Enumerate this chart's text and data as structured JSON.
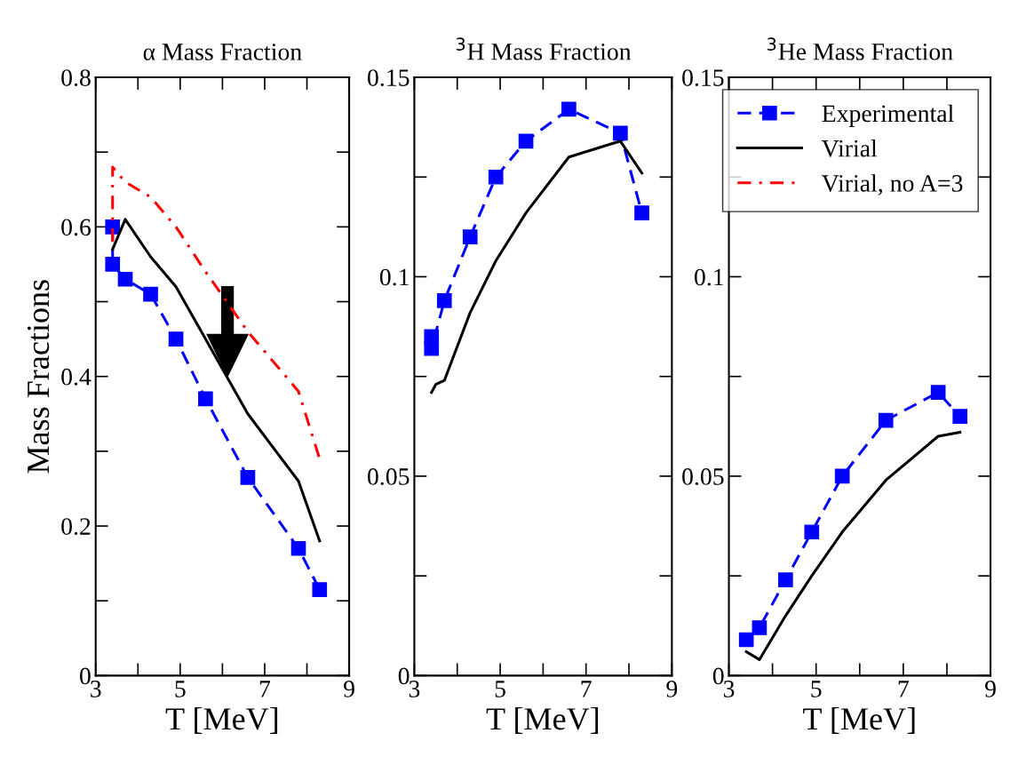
{
  "chart_data": [
    {
      "type": "line",
      "title": "α Mass Fraction",
      "xlabel": "T [MeV]",
      "ylabel": "Mass Fractions",
      "xlim": [
        3,
        9
      ],
      "xticks": [
        3,
        {
          "value": 4,
          "label": null
        },
        5,
        {
          "value": 6,
          "label": null
        },
        7,
        {
          "value": 8,
          "label": null
        },
        9
      ],
      "ylim": [
        0,
        0.8
      ],
      "yticks": [
        0,
        {
          "value": 0.1,
          "label": null
        },
        0.2,
        {
          "value": 0.3,
          "label": null
        },
        0.4,
        {
          "value": 0.5,
          "label": null
        },
        0.6,
        {
          "value": 0.7,
          "label": null
        },
        0.8
      ],
      "grid": false,
      "legend": false,
      "series": [
        {
          "color": "#0000ff",
          "marker": "square",
          "line_style": "dashed",
          "x": [
            3.4,
            3.4,
            3.7,
            4.3,
            4.9,
            5.6,
            6.6,
            7.8,
            8.3
          ],
          "values": [
            0.6,
            0.55,
            0.53,
            0.51,
            0.45,
            0.37,
            0.265,
            0.17,
            0.115
          ]
        },
        {
          "color": "#000000",
          "marker": "none",
          "line_style": "solid",
          "x": [
            3.4,
            3.7,
            4.3,
            4.9,
            5.6,
            6.6,
            7.8,
            8.3
          ],
          "values": [
            0.57,
            0.61,
            0.56,
            0.52,
            0.45,
            0.35,
            0.26,
            0.18
          ]
        },
        {
          "color": "#ff0000",
          "marker": "none",
          "line_style": "dashdot",
          "x": [
            3.4,
            3.4,
            3.7,
            4.3,
            4.9,
            5.6,
            6.6,
            7.8,
            8.3
          ],
          "values": [
            0.58,
            0.68,
            0.66,
            0.64,
            0.6,
            0.54,
            0.46,
            0.38,
            0.29
          ]
        }
      ]
    },
    {
      "type": "line",
      "title": "$^{3}$H Mass Fraction",
      "xlabel": "T [MeV]",
      "xlim": [
        3,
        9
      ],
      "xticks": [
        3,
        {
          "value": 4,
          "label": null
        },
        5,
        {
          "value": 6,
          "label": null
        },
        7,
        {
          "value": 8,
          "label": null
        },
        9
      ],
      "ylim": [
        0,
        0.15
      ],
      "yticks": [
        0,
        {
          "value": 0.025,
          "label": null
        },
        0.05,
        {
          "value": 0.075,
          "label": null
        },
        0.1,
        {
          "value": 0.125,
          "label": null
        },
        0.15
      ],
      "grid": false,
      "legend": false,
      "series": [
        {
          "color": "#0000ff",
          "marker": "square",
          "line_style": "dashed",
          "x": [
            3.4,
            3.4,
            3.7,
            4.3,
            4.9,
            5.6,
            6.6,
            7.8,
            8.3
          ],
          "values": [
            0.085,
            0.082,
            0.094,
            0.11,
            0.125,
            0.134,
            0.142,
            0.136,
            0.116
          ]
        },
        {
          "color": "#000000",
          "marker": "none",
          "line_style": "solid",
          "x": [
            3.4,
            3.5,
            3.7,
            4.3,
            4.9,
            5.6,
            6.6,
            7.8,
            8.3
          ],
          "values": [
            0.071,
            0.073,
            0.074,
            0.091,
            0.104,
            0.116,
            0.13,
            0.134,
            0.126
          ]
        }
      ]
    },
    {
      "type": "line",
      "title": "$^{3}$He Mass Fraction",
      "xlabel": "T [MeV]",
      "xlim": [
        3,
        9
      ],
      "xticks": [
        3,
        {
          "value": 4,
          "label": null
        },
        5,
        {
          "value": 6,
          "label": null
        },
        7,
        {
          "value": 8,
          "label": null
        },
        9
      ],
      "ylim": [
        0,
        0.15
      ],
      "yticks": [
        0,
        {
          "value": 0.025,
          "label": null
        },
        0.05,
        {
          "value": 0.075,
          "label": null
        },
        0.1,
        {
          "value": 0.125,
          "label": null
        },
        0.15
      ],
      "grid": false,
      "legend": "top right",
      "series": [
        {
          "name": "Experimental",
          "color": "#0000ff",
          "marker": "square",
          "line_style": "dashed",
          "x": [
            3.4,
            3.7,
            4.3,
            4.9,
            5.6,
            6.6,
            7.8,
            8.3
          ],
          "values": [
            0.009,
            0.012,
            0.024,
            0.036,
            0.05,
            0.064,
            0.071,
            0.065
          ]
        },
        {
          "name": "Virial",
          "color": "#000000",
          "marker": "none",
          "line_style": "solid",
          "x": [
            3.4,
            3.7,
            4.3,
            4.9,
            5.6,
            6.6,
            7.8,
            8.3
          ],
          "values": [
            0.006,
            0.004,
            0.015,
            0.025,
            0.036,
            0.049,
            0.06,
            0.061
          ]
        },
        {
          "name": "Virial, no A=3",
          "color": "#ff0000",
          "marker": "none",
          "line_style": "dashdot"
        }
      ]
    }
  ]
}
